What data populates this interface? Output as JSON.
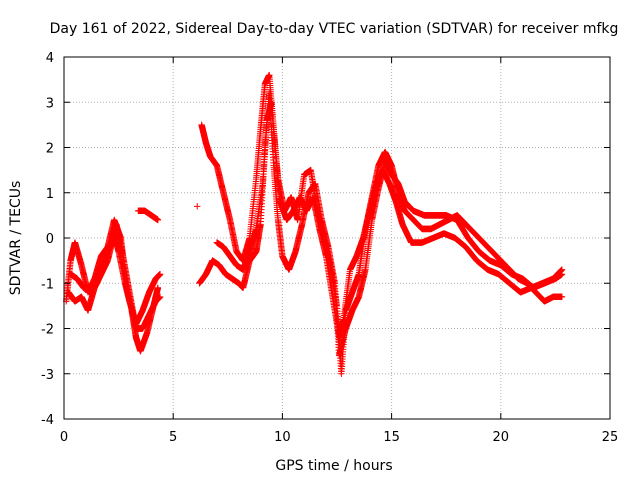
{
  "chart_data": {
    "type": "scatter",
    "title": "Day 161 of 2022, Sidereal Day-to-day VTEC variation (SDTVAR) for receiver mfkg",
    "xlabel": "GPS time / hours",
    "ylabel": "SDTVAR / TECUs",
    "xlim": [
      0,
      25
    ],
    "ylim": [
      -4,
      4
    ],
    "xticks": [
      "0",
      "5",
      "10",
      "15",
      "20",
      "25"
    ],
    "yticks": [
      "-4",
      "-3",
      "-2",
      "-1",
      "0",
      "1",
      "2",
      "3",
      "4"
    ],
    "grid": true,
    "marker": "+",
    "colors": {
      "series": "#ff0000",
      "grid": "#b0b0b0",
      "axis": "#000000"
    },
    "series": [
      {
        "name": "SDTVAR",
        "tracks": [
          [
            [
              0.1,
              -1.4
            ],
            [
              0.3,
              -0.5
            ],
            [
              0.5,
              -0.1
            ],
            [
              0.8,
              -0.6
            ],
            [
              1.1,
              -1.2
            ],
            [
              1.4,
              -0.9
            ],
            [
              1.7,
              -0.4
            ],
            [
              2.0,
              -0.2
            ],
            [
              2.3,
              0.4
            ],
            [
              2.6,
              0.0
            ],
            [
              2.8,
              -0.8
            ],
            [
              3.1,
              -1.6
            ],
            [
              3.3,
              -2.2
            ],
            [
              3.5,
              -2.5
            ],
            [
              3.8,
              -2.1
            ],
            [
              4.1,
              -1.5
            ],
            [
              4.3,
              -1.1
            ]
          ],
          [
            [
              0.2,
              -1.2
            ],
            [
              0.5,
              -1.4
            ],
            [
              0.8,
              -1.3
            ],
            [
              1.1,
              -1.6
            ],
            [
              1.4,
              -1.1
            ],
            [
              1.7,
              -0.8
            ],
            [
              2.0,
              -0.5
            ],
            [
              2.3,
              0.1
            ],
            [
              2.5,
              -0.3
            ],
            [
              2.8,
              -1.0
            ],
            [
              3.0,
              -1.4
            ],
            [
              3.3,
              -1.9
            ],
            [
              3.6,
              -1.6
            ],
            [
              3.9,
              -1.2
            ],
            [
              4.2,
              -0.9
            ],
            [
              4.4,
              -0.8
            ]
          ],
          [
            [
              0.3,
              -0.8
            ],
            [
              0.6,
              -0.9
            ],
            [
              0.9,
              -1.1
            ],
            [
              1.2,
              -1.2
            ],
            [
              1.5,
              -0.9
            ],
            [
              1.8,
              -0.6
            ],
            [
              2.1,
              -0.2
            ],
            [
              2.4,
              0.3
            ],
            [
              2.7,
              -0.4
            ],
            [
              3.0,
              -1.2
            ],
            [
              3.3,
              -2.0
            ],
            [
              3.6,
              -2.0
            ],
            [
              3.9,
              -1.7
            ],
            [
              4.2,
              -1.4
            ],
            [
              4.4,
              -1.3
            ]
          ],
          [
            [
              3.4,
              0.6
            ],
            [
              3.7,
              0.6
            ],
            [
              4.0,
              0.5
            ],
            [
              4.3,
              0.4
            ]
          ],
          [
            [
              6.3,
              2.5
            ],
            [
              6.5,
              2.1
            ],
            [
              6.7,
              1.8
            ],
            [
              7.0,
              1.6
            ],
            [
              7.3,
              1.0
            ],
            [
              7.6,
              0.4
            ],
            [
              7.9,
              -0.3
            ],
            [
              8.2,
              -0.5
            ],
            [
              8.5,
              0.0
            ],
            [
              8.8,
              1.3
            ],
            [
              9.0,
              2.4
            ],
            [
              9.2,
              3.4
            ],
            [
              9.4,
              3.6
            ],
            [
              9.6,
              2.4
            ],
            [
              9.8,
              1.3
            ],
            [
              10.1,
              0.6
            ],
            [
              10.4,
              0.9
            ],
            [
              10.7,
              0.4
            ],
            [
              11.0,
              1.4
            ],
            [
              11.3,
              1.5
            ],
            [
              11.6,
              0.6
            ],
            [
              11.9,
              0.0
            ],
            [
              12.2,
              -0.6
            ],
            [
              12.5,
              -1.5
            ],
            [
              12.7,
              -3.0
            ],
            [
              12.9,
              -1.6
            ],
            [
              13.2,
              -1.2
            ],
            [
              13.5,
              -0.8
            ],
            [
              13.8,
              0.2
            ],
            [
              14.1,
              0.9
            ],
            [
              14.4,
              1.6
            ],
            [
              14.7,
              1.9
            ],
            [
              15.0,
              1.6
            ],
            [
              15.3,
              1.0
            ],
            [
              15.6,
              0.6
            ],
            [
              16.0,
              0.4
            ],
            [
              16.4,
              0.2
            ],
            [
              16.8,
              0.2
            ],
            [
              17.2,
              0.3
            ],
            [
              17.6,
              0.4
            ],
            [
              18.0,
              0.5
            ],
            [
              18.4,
              0.3
            ],
            [
              18.8,
              0.1
            ],
            [
              19.2,
              -0.1
            ],
            [
              19.6,
              -0.3
            ],
            [
              20.0,
              -0.5
            ],
            [
              20.4,
              -0.7
            ],
            [
              20.8,
              -0.9
            ],
            [
              21.2,
              -1.0
            ],
            [
              21.6,
              -1.2
            ],
            [
              22.0,
              -1.4
            ],
            [
              22.4,
              -1.3
            ],
            [
              22.8,
              -1.3
            ]
          ],
          [
            [
              6.2,
              -1.0
            ],
            [
              6.5,
              -0.8
            ],
            [
              6.8,
              -0.5
            ],
            [
              7.1,
              -0.6
            ],
            [
              7.4,
              -0.8
            ],
            [
              7.7,
              -0.9
            ],
            [
              8.0,
              -1.0
            ],
            [
              8.2,
              -1.1
            ],
            [
              8.5,
              -0.5
            ],
            [
              8.8,
              -0.3
            ],
            [
              9.0,
              0.3
            ],
            [
              9.2,
              2.0
            ],
            [
              9.4,
              3.2
            ],
            [
              9.6,
              1.6
            ],
            [
              9.8,
              0.4
            ],
            [
              10.0,
              -0.4
            ],
            [
              10.3,
              -0.7
            ],
            [
              10.6,
              -0.3
            ],
            [
              10.9,
              0.3
            ],
            [
              11.2,
              1.0
            ],
            [
              11.5,
              1.2
            ],
            [
              11.8,
              0.4
            ],
            [
              12.1,
              -0.2
            ],
            [
              12.4,
              -1.0
            ],
            [
              12.6,
              -2.6
            ],
            [
              12.9,
              -2.0
            ],
            [
              13.2,
              -1.6
            ],
            [
              13.5,
              -1.3
            ],
            [
              13.8,
              -0.7
            ],
            [
              14.1,
              0.4
            ],
            [
              14.4,
              1.1
            ],
            [
              14.7,
              1.7
            ],
            [
              15.0,
              1.4
            ],
            [
              15.3,
              1.2
            ],
            [
              15.6,
              0.8
            ],
            [
              16.0,
              0.6
            ],
            [
              16.5,
              0.5
            ],
            [
              17.0,
              0.5
            ],
            [
              17.5,
              0.5
            ],
            [
              18.0,
              0.4
            ],
            [
              18.5,
              0.0
            ],
            [
              19.0,
              -0.3
            ],
            [
              19.5,
              -0.5
            ],
            [
              20.0,
              -0.6
            ],
            [
              20.5,
              -0.8
            ],
            [
              21.0,
              -0.9
            ],
            [
              21.5,
              -1.1
            ],
            [
              22.0,
              -1.0
            ],
            [
              22.5,
              -0.9
            ],
            [
              22.8,
              -0.8
            ]
          ],
          [
            [
              7.0,
              -0.1
            ],
            [
              7.3,
              -0.2
            ],
            [
              7.6,
              -0.4
            ],
            [
              7.9,
              -0.6
            ],
            [
              8.2,
              -0.7
            ],
            [
              8.5,
              -0.3
            ],
            [
              8.8,
              0.2
            ],
            [
              9.1,
              1.2
            ],
            [
              9.3,
              2.6
            ],
            [
              9.5,
              3.0
            ],
            [
              9.7,
              1.8
            ],
            [
              9.9,
              0.8
            ],
            [
              10.2,
              0.4
            ],
            [
              10.5,
              0.6
            ],
            [
              10.8,
              0.9
            ],
            [
              11.1,
              0.6
            ],
            [
              11.4,
              0.9
            ],
            [
              11.7,
              0.2
            ],
            [
              12.0,
              -0.4
            ],
            [
              12.3,
              -1.3
            ],
            [
              12.6,
              -2.2
            ],
            [
              12.8,
              -1.8
            ],
            [
              13.1,
              -0.7
            ],
            [
              13.4,
              -0.4
            ],
            [
              13.7,
              0.0
            ],
            [
              14.0,
              0.6
            ],
            [
              14.3,
              1.2
            ],
            [
              14.6,
              1.5
            ],
            [
              14.9,
              1.2
            ],
            [
              15.2,
              0.8
            ],
            [
              15.5,
              0.3
            ],
            [
              15.9,
              -0.1
            ],
            [
              16.4,
              -0.1
            ],
            [
              16.9,
              0.0
            ],
            [
              17.4,
              0.1
            ],
            [
              17.9,
              0.0
            ],
            [
              18.4,
              -0.2
            ],
            [
              18.9,
              -0.5
            ],
            [
              19.4,
              -0.7
            ],
            [
              19.9,
              -0.8
            ],
            [
              20.4,
              -1.0
            ],
            [
              20.9,
              -1.2
            ],
            [
              21.4,
              -1.1
            ],
            [
              21.9,
              -1.0
            ],
            [
              22.4,
              -0.9
            ],
            [
              22.8,
              -0.7
            ]
          ],
          [
            [
              6.1,
              0.7
            ]
          ]
        ]
      }
    ]
  }
}
